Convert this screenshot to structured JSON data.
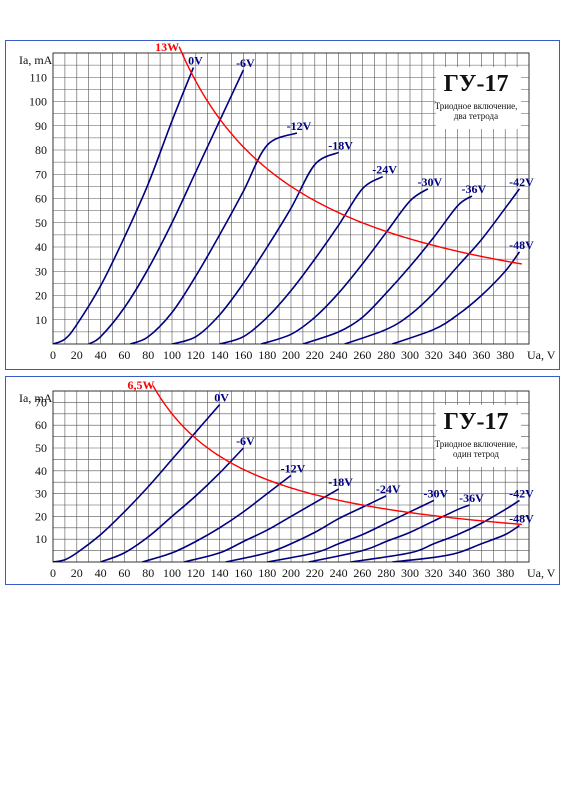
{
  "chart_data": [
    {
      "type": "line",
      "title": "ГУ-17",
      "subtitle": [
        "Триодное включение,",
        "два тетрода"
      ],
      "xlabel": "Ua, V",
      "ylabel": "Ia, mA",
      "xlim": [
        0,
        400
      ],
      "ylim": [
        0,
        120
      ],
      "x_ticks": [
        0,
        20,
        40,
        60,
        80,
        100,
        120,
        140,
        160,
        180,
        200,
        220,
        240,
        260,
        280,
        300,
        320,
        340,
        360,
        380
      ],
      "y_ticks": [
        10,
        20,
        30,
        40,
        50,
        60,
        70,
        80,
        90,
        100,
        110
      ],
      "grid": true,
      "colors": {
        "curves": "#000080",
        "power": "#ff0000",
        "frame": "#3b5bc4"
      },
      "series": [
        {
          "name": "0V",
          "points": [
            [
              0,
              0
            ],
            [
              10,
              2
            ],
            [
              20,
              8
            ],
            [
              40,
              24
            ],
            [
              60,
              44
            ],
            [
              80,
              66
            ],
            [
              100,
              92
            ],
            [
              118,
              114
            ]
          ]
        },
        {
          "name": "-6V",
          "points": [
            [
              30,
              0
            ],
            [
              40,
              3
            ],
            [
              60,
              15
            ],
            [
              80,
              31
            ],
            [
              100,
              50
            ],
            [
              120,
              71
            ],
            [
              140,
              92
            ],
            [
              160,
              113
            ]
          ]
        },
        {
          "name": "-12V",
          "points": [
            [
              65,
              0
            ],
            [
              80,
              3
            ],
            [
              100,
              13
            ],
            [
              120,
              28
            ],
            [
              140,
              45
            ],
            [
              160,
              63
            ],
            [
              180,
              82
            ],
            [
              205,
              87
            ]
          ]
        },
        {
          "name": "-18V",
          "points": [
            [
              100,
              0
            ],
            [
              120,
              3
            ],
            [
              140,
              12
            ],
            [
              160,
              25
            ],
            [
              180,
              40
            ],
            [
              200,
              56
            ],
            [
              220,
              74
            ],
            [
              240,
              79
            ]
          ]
        },
        {
          "name": "-24V",
          "points": [
            [
              140,
              0
            ],
            [
              160,
              3
            ],
            [
              180,
              11
            ],
            [
              200,
              22
            ],
            [
              220,
              35
            ],
            [
              240,
              49
            ],
            [
              260,
              64
            ],
            [
              277,
              69
            ]
          ]
        },
        {
          "name": "-30V",
          "points": [
            [
              175,
              0
            ],
            [
              200,
              4
            ],
            [
              220,
              11
            ],
            [
              240,
              21
            ],
            [
              260,
              33
            ],
            [
              280,
              46
            ],
            [
              300,
              59
            ],
            [
              315,
              64
            ]
          ]
        },
        {
          "name": "-36V",
          "points": [
            [
              210,
              0
            ],
            [
              240,
              5
            ],
            [
              260,
              11
            ],
            [
              280,
              21
            ],
            [
              300,
              32
            ],
            [
              320,
              44
            ],
            [
              340,
              57
            ],
            [
              352,
              61
            ]
          ]
        },
        {
          "name": "-42V",
          "points": [
            [
              245,
              0
            ],
            [
              280,
              6
            ],
            [
              300,
              12
            ],
            [
              320,
              21
            ],
            [
              340,
              32
            ],
            [
              360,
              43
            ],
            [
              380,
              56
            ],
            [
              392,
              64
            ]
          ]
        },
        {
          "name": "-48V",
          "points": [
            [
              285,
              0
            ],
            [
              320,
              6
            ],
            [
              340,
              12
            ],
            [
              360,
              20
            ],
            [
              380,
              30
            ],
            [
              392,
              38
            ]
          ]
        }
      ],
      "power_curve": {
        "name": "13W",
        "watts": 13
      }
    },
    {
      "type": "line",
      "title": "ГУ-17",
      "subtitle": [
        "Триодное включение,",
        "один тетрод"
      ],
      "xlabel": "Ua, V",
      "ylabel": "Ia, mA",
      "xlim": [
        0,
        400
      ],
      "ylim": [
        0,
        75
      ],
      "x_ticks": [
        0,
        20,
        40,
        60,
        80,
        100,
        120,
        140,
        160,
        180,
        200,
        220,
        240,
        260,
        280,
        300,
        320,
        340,
        360,
        380
      ],
      "y_ticks": [
        10,
        20,
        30,
        40,
        50,
        60,
        70
      ],
      "grid": true,
      "colors": {
        "curves": "#000080",
        "power": "#ff0000",
        "frame": "#3b5bc4"
      },
      "series": [
        {
          "name": "0V",
          "points": [
            [
              0,
              0
            ],
            [
              10,
              1
            ],
            [
              20,
              4
            ],
            [
              40,
              12
            ],
            [
              60,
              22
            ],
            [
              80,
              33
            ],
            [
              100,
              45
            ],
            [
              120,
              57
            ],
            [
              140,
              69
            ]
          ]
        },
        {
          "name": "-6V",
          "points": [
            [
              40,
              0
            ],
            [
              60,
              4
            ],
            [
              80,
              11
            ],
            [
              100,
              20
            ],
            [
              120,
              29
            ],
            [
              140,
              39
            ],
            [
              160,
              50
            ]
          ]
        },
        {
          "name": "-12V",
          "points": [
            [
              75,
              0
            ],
            [
              100,
              4
            ],
            [
              120,
              9
            ],
            [
              140,
              15
            ],
            [
              160,
              22
            ],
            [
              180,
              30
            ],
            [
              200,
              38
            ]
          ]
        },
        {
          "name": "-18V",
          "points": [
            [
              110,
              0
            ],
            [
              140,
              4
            ],
            [
              160,
              9
            ],
            [
              180,
              14
            ],
            [
              200,
              20
            ],
            [
              220,
              26
            ],
            [
              240,
              32
            ]
          ]
        },
        {
          "name": "-24V",
          "points": [
            [
              145,
              0
            ],
            [
              180,
              4
            ],
            [
              200,
              8
            ],
            [
              220,
              13
            ],
            [
              240,
              19
            ],
            [
              260,
              24
            ],
            [
              280,
              29
            ]
          ]
        },
        {
          "name": "-30V",
          "points": [
            [
              180,
              0
            ],
            [
              220,
              4
            ],
            [
              240,
              8
            ],
            [
              260,
              12
            ],
            [
              280,
              17
            ],
            [
              300,
              22
            ],
            [
              320,
              27
            ]
          ]
        },
        {
          "name": "-36V",
          "points": [
            [
              215,
              0
            ],
            [
              260,
              5
            ],
            [
              280,
              9
            ],
            [
              300,
              13
            ],
            [
              320,
              18
            ],
            [
              340,
              23
            ],
            [
              350,
              25
            ]
          ]
        },
        {
          "name": "-42V",
          "points": [
            [
              250,
              0
            ],
            [
              300,
              4
            ],
            [
              320,
              8
            ],
            [
              340,
              12
            ],
            [
              360,
              17
            ],
            [
              380,
              23
            ],
            [
              392,
              27
            ]
          ]
        },
        {
          "name": "-48V",
          "points": [
            [
              285,
              0
            ],
            [
              320,
              2
            ],
            [
              340,
              4
            ],
            [
              360,
              8
            ],
            [
              380,
              12
            ],
            [
              392,
              16
            ]
          ]
        }
      ],
      "power_curve": {
        "name": "6,5W",
        "watts": 6.5
      }
    }
  ]
}
